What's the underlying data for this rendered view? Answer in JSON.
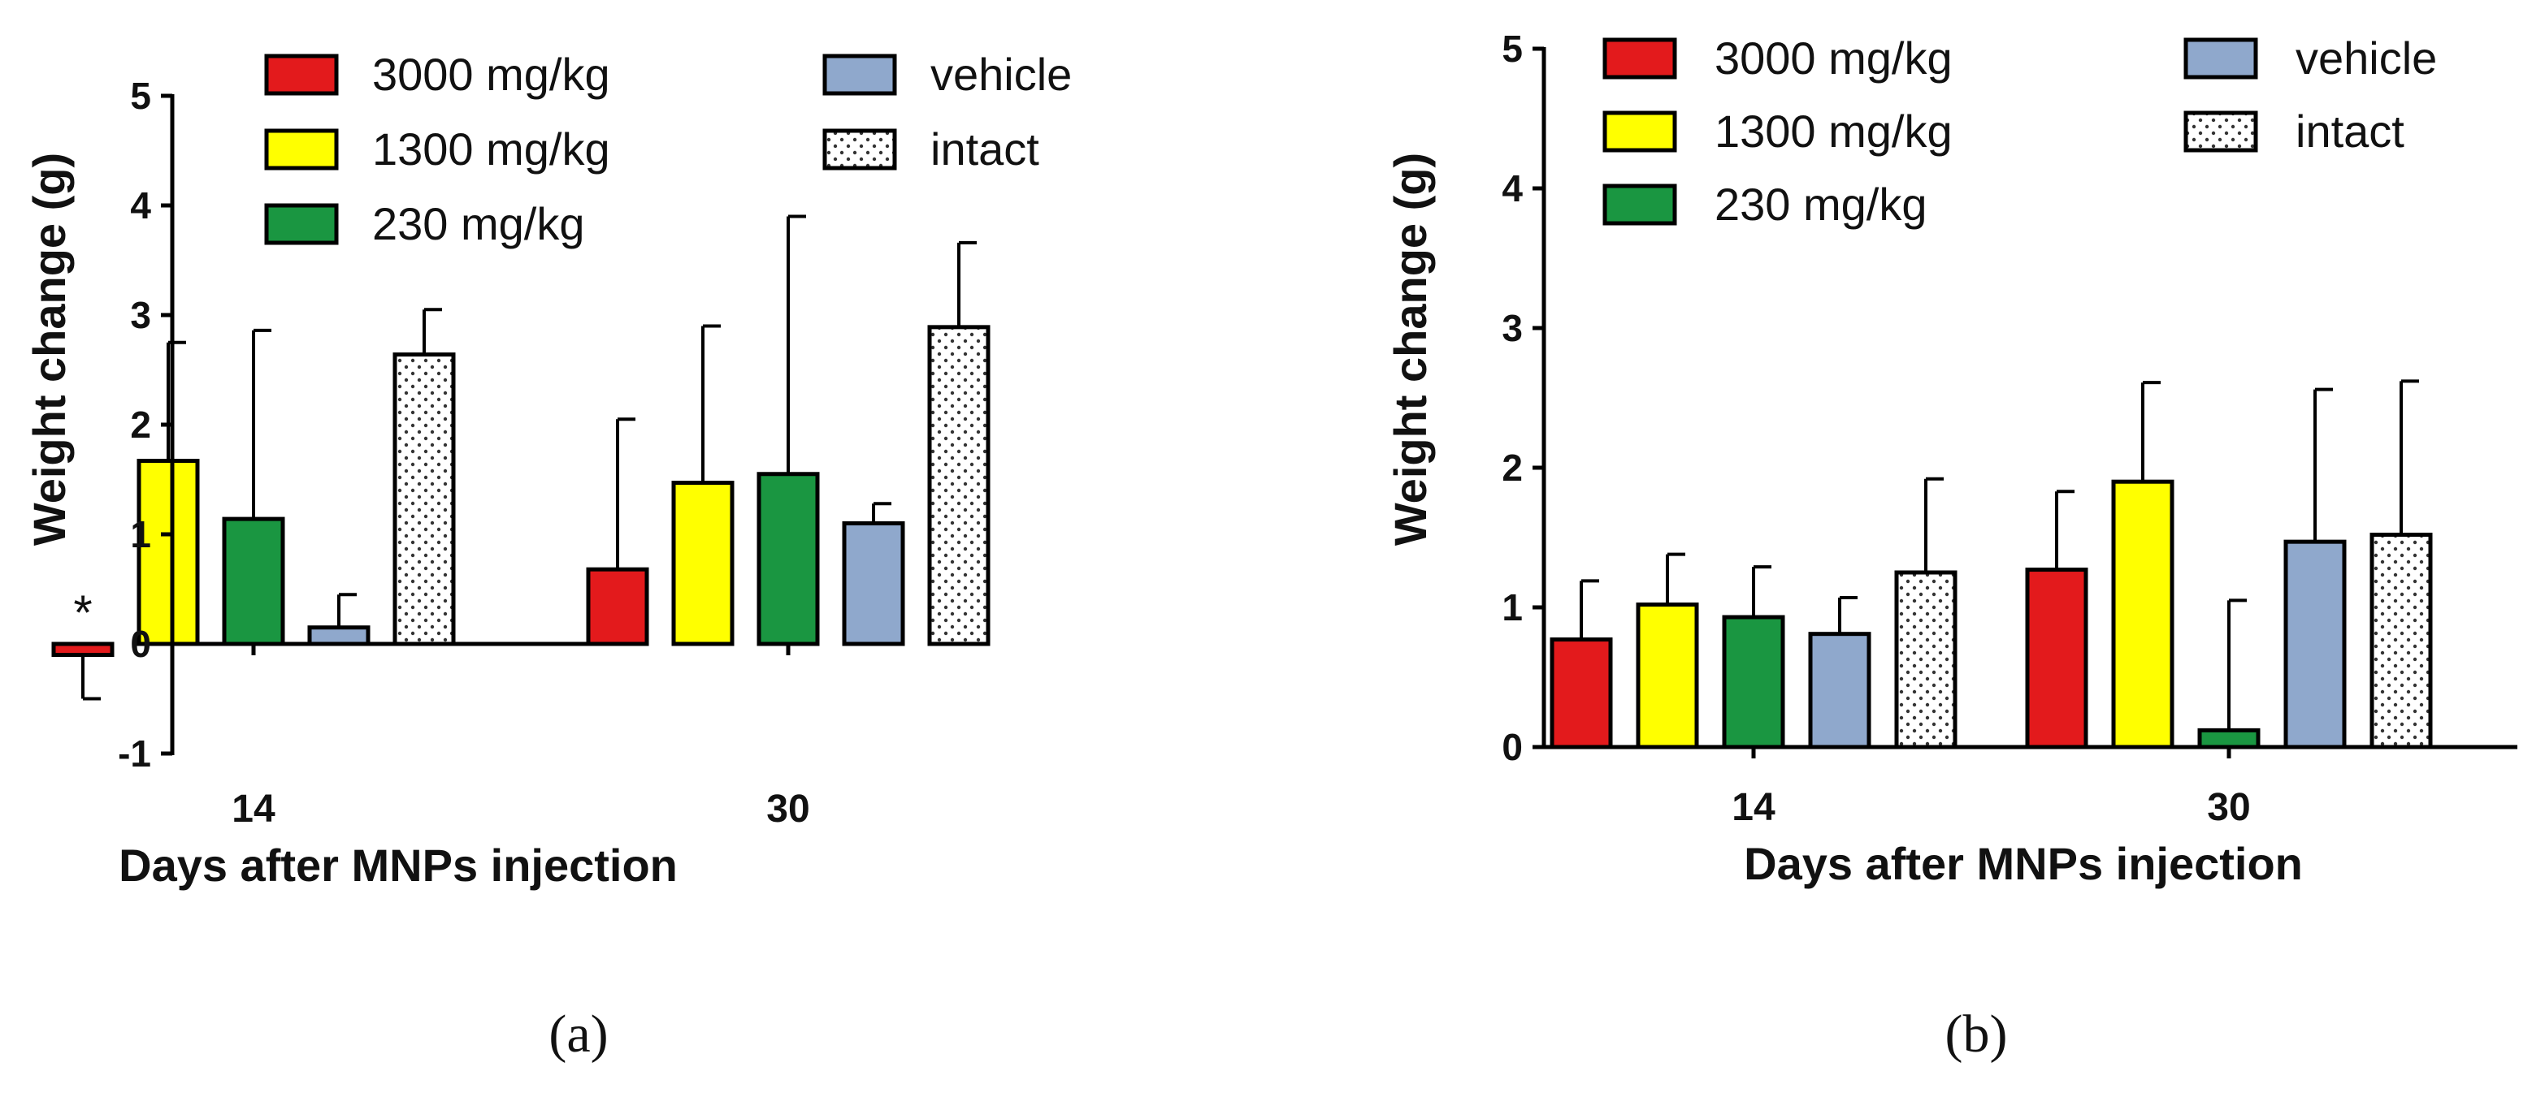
{
  "chart_data": [
    {
      "panel": "(a)",
      "type": "bar",
      "categories": [
        "14",
        "30"
      ],
      "ylim": [
        -1,
        5
      ],
      "yticks": [
        "-1",
        "0",
        "1",
        "2",
        "3",
        "4",
        "5"
      ],
      "xlabel": "Days after MNPs injection",
      "ylabel": "Weight change (g)",
      "legend_position": "top",
      "series": [
        {
          "name": "3000 mg/kg",
          "color": "#e31a1c",
          "pattern": "solid",
          "values": [
            -0.1,
            0.68
          ],
          "errors": [
            0.4,
            1.37
          ]
        },
        {
          "name": "1300 mg/kg",
          "color": "#ffff00",
          "pattern": "solid",
          "values": [
            1.67,
            1.47
          ],
          "errors": [
            1.08,
            1.43
          ]
        },
        {
          "name": "230 mg/kg",
          "color": "#1a9641",
          "pattern": "solid",
          "values": [
            1.14,
            1.55
          ],
          "errors": [
            1.72,
            2.35
          ]
        },
        {
          "name": "vehicle",
          "color": "#8fa8cc",
          "pattern": "solid",
          "values": [
            0.15,
            1.1
          ],
          "errors": [
            0.3,
            0.18
          ]
        },
        {
          "name": "intact",
          "color": "#ffffff",
          "pattern": "dots",
          "values": [
            2.64,
            2.89
          ],
          "errors": [
            0.41,
            0.77
          ]
        }
      ],
      "annotations": [
        {
          "text": "*",
          "category": "14",
          "series": "3000 mg/kg"
        }
      ]
    },
    {
      "panel": "(b)",
      "type": "bar",
      "categories": [
        "14",
        "30"
      ],
      "ylim": [
        0,
        5
      ],
      "yticks": [
        "0",
        "1",
        "2",
        "3",
        "4",
        "5"
      ],
      "xlabel": "Days after MNPs injection",
      "ylabel": "Weight change (g)",
      "legend_position": "top",
      "series": [
        {
          "name": "3000 mg/kg",
          "color": "#e31a1c",
          "pattern": "solid",
          "values": [
            0.77,
            1.27
          ],
          "errors": [
            0.42,
            0.56
          ]
        },
        {
          "name": "1300 mg/kg",
          "color": "#ffff00",
          "pattern": "solid",
          "values": [
            1.02,
            1.9
          ],
          "errors": [
            0.36,
            0.71
          ]
        },
        {
          "name": "230 mg/kg",
          "color": "#1a9641",
          "pattern": "solid",
          "values": [
            0.93,
            0.12
          ],
          "errors": [
            0.36,
            0.93
          ]
        },
        {
          "name": "vehicle",
          "color": "#8fa8cc",
          "pattern": "solid",
          "values": [
            0.81,
            1.47
          ],
          "errors": [
            0.26,
            1.09
          ]
        },
        {
          "name": "intact",
          "color": "#ffffff",
          "pattern": "dots",
          "values": [
            1.25,
            1.52
          ],
          "errors": [
            0.67,
            1.1
          ]
        }
      ],
      "annotations": []
    }
  ]
}
